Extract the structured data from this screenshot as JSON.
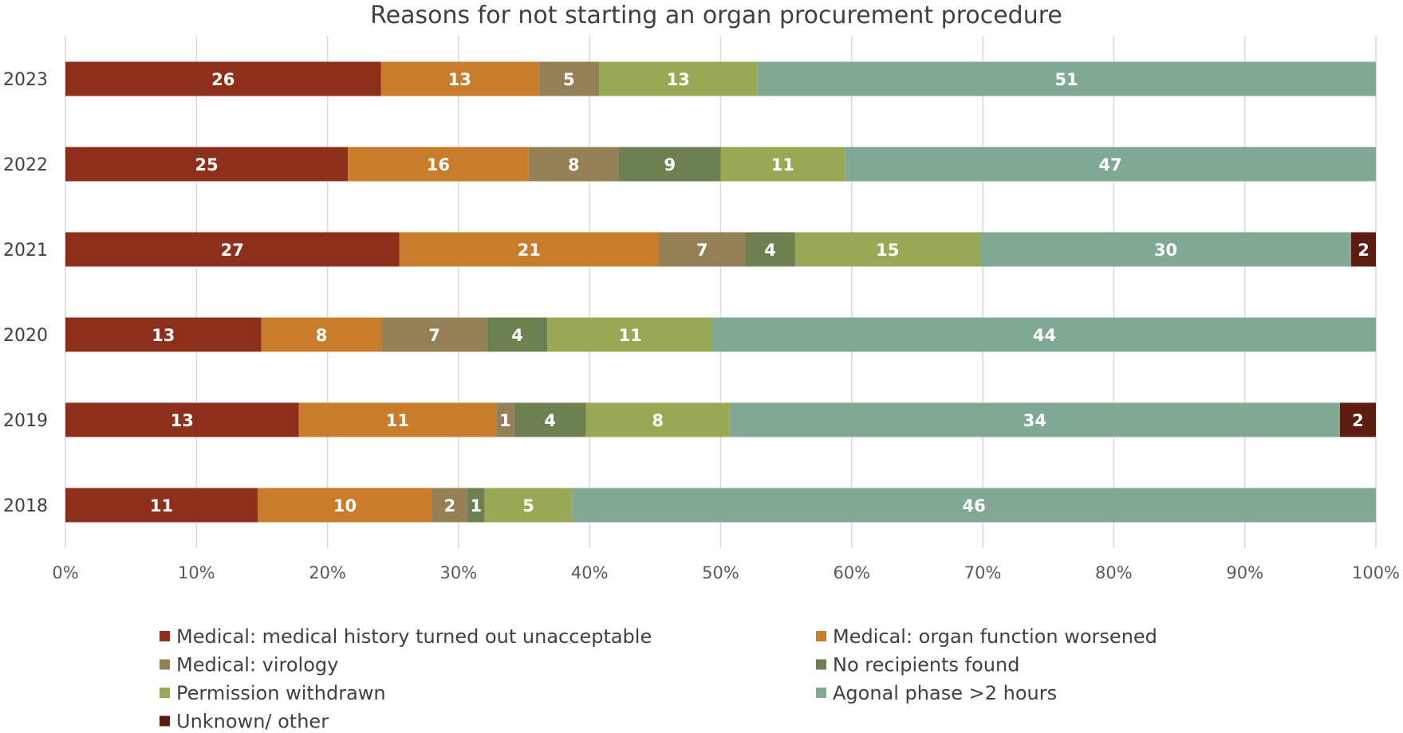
{
  "chart_data": {
    "type": "bar",
    "orientation": "horizontal",
    "stacked": true,
    "normalized": true,
    "title": "Reasons for not starting an organ procurement procedure",
    "categories": [
      "2023",
      "2022",
      "2021",
      "2020",
      "2019",
      "2018"
    ],
    "series": [
      {
        "name": "Medical: medical history turned out unacceptable",
        "color": "#8e2f1c",
        "values": [
          26,
          25,
          27,
          13,
          13,
          11
        ]
      },
      {
        "name": "Medical: organ function worsened",
        "color": "#c97d2a",
        "values": [
          13,
          16,
          21,
          8,
          11,
          10
        ]
      },
      {
        "name": "Medical: virology",
        "color": "#958056",
        "values": [
          5,
          8,
          7,
          7,
          1,
          2
        ]
      },
      {
        "name": "No recipients found",
        "color": "#6e8051",
        "values": [
          0,
          9,
          4,
          4,
          4,
          1
        ]
      },
      {
        "name": "Permission withdrawn",
        "color": "#98a855",
        "values": [
          13,
          11,
          15,
          11,
          8,
          5
        ]
      },
      {
        "name": "Agonal phase >2 hours",
        "color": "#80a893",
        "values": [
          51,
          47,
          30,
          44,
          34,
          46
        ]
      },
      {
        "name": "Unknown/ other",
        "color": "#5c1c10",
        "values": [
          0,
          0,
          2,
          0,
          2,
          0
        ]
      }
    ],
    "x_ticks": [
      "0%",
      "10%",
      "20%",
      "30%",
      "40%",
      "50%",
      "60%",
      "70%",
      "80%",
      "90%",
      "100%"
    ],
    "xlim": [
      0,
      100
    ],
    "grid": true,
    "legend_position": "bottom",
    "data_labels": true
  }
}
